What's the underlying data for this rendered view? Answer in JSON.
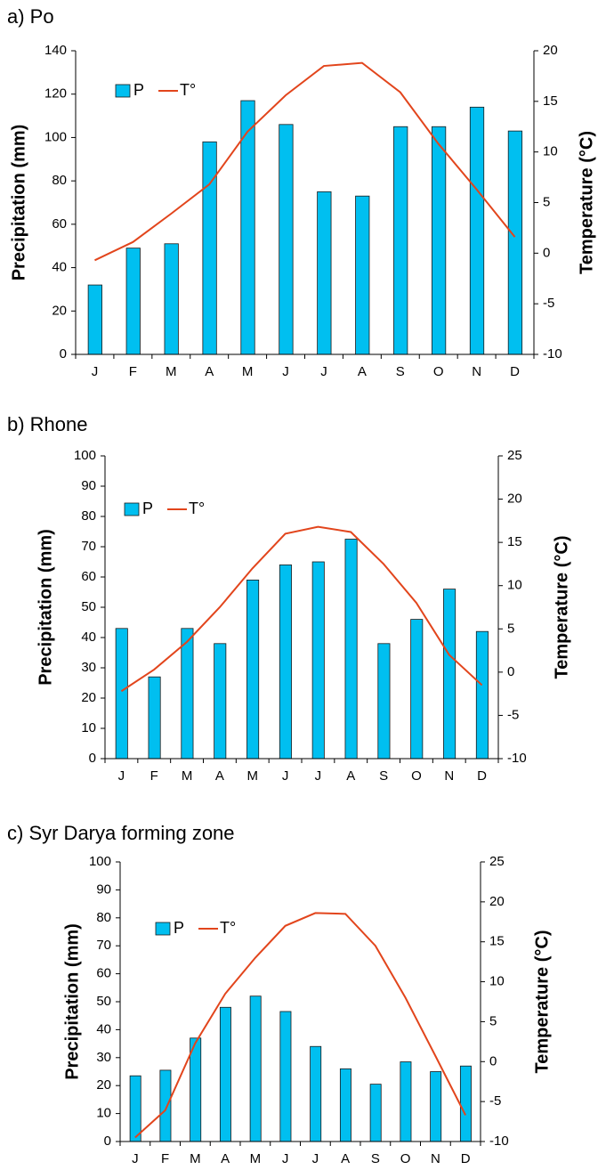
{
  "chart_data": [
    {
      "type": "bar",
      "title": "a) Po",
      "categories": [
        "J",
        "F",
        "M",
        "A",
        "M",
        "J",
        "J",
        "A",
        "S",
        "O",
        "N",
        "D"
      ],
      "series": [
        {
          "name": "P",
          "type": "bar",
          "color": "#00bff0",
          "values": [
            32,
            49,
            51,
            98,
            117,
            106,
            75,
            73,
            105,
            105,
            114,
            103
          ]
        },
        {
          "name": "T°",
          "type": "line",
          "axis": "y2",
          "color": "#e2451c",
          "values": [
            -0.7,
            1.1,
            3.9,
            6.8,
            12,
            15.6,
            18.5,
            18.8,
            15.9,
            10.8,
            6.3,
            1.6
          ]
        }
      ],
      "y_label": "Precipitation (mm)",
      "y2_label": "Temperature (°C)",
      "ylim": [
        0,
        140
      ],
      "yticks": [
        0,
        20,
        40,
        60,
        80,
        100,
        120,
        140
      ],
      "y2lim": [
        -10,
        20
      ],
      "y2ticks": [
        -10,
        -5,
        0,
        5,
        10,
        15,
        20
      ]
    },
    {
      "type": "bar",
      "title": "b) Rhone",
      "categories": [
        "J",
        "F",
        "M",
        "A",
        "M",
        "J",
        "J",
        "A",
        "S",
        "O",
        "N",
        "D"
      ],
      "series": [
        {
          "name": "P",
          "type": "bar",
          "color": "#00bff0",
          "values": [
            43,
            27,
            43,
            38,
            59,
            64,
            65,
            72.5,
            38,
            46,
            56,
            42
          ]
        },
        {
          "name": "T°",
          "type": "line",
          "axis": "y2",
          "color": "#e2451c",
          "values": [
            -2.2,
            0.3,
            3.5,
            7.5,
            12,
            16,
            16.8,
            16.2,
            12.5,
            8,
            2,
            -1.5
          ]
        }
      ],
      "y_label": "Precipitation (mm)",
      "y2_label": "Temperature (°C)",
      "ylim": [
        0,
        100
      ],
      "yticks": [
        0,
        10,
        20,
        30,
        40,
        50,
        60,
        70,
        80,
        90,
        100
      ],
      "y2lim": [
        -10,
        25
      ],
      "y2ticks": [
        -10,
        -5,
        0,
        5,
        10,
        15,
        20,
        25
      ]
    },
    {
      "type": "bar",
      "title": "c) Syr Darya forming zone",
      "categories": [
        "J",
        "F",
        "M",
        "A",
        "M",
        "J",
        "J",
        "A",
        "S",
        "O",
        "N",
        "D"
      ],
      "series": [
        {
          "name": "P",
          "type": "bar",
          "color": "#00bff0",
          "values": [
            23.5,
            25.5,
            37,
            48,
            52,
            46.5,
            34,
            26,
            20.5,
            28.5,
            25,
            27
          ]
        },
        {
          "name": "T°",
          "type": "line",
          "axis": "y2",
          "color": "#e2451c",
          "values": [
            -9.5,
            -6.1,
            2.3,
            8.5,
            13,
            17,
            18.6,
            18.5,
            14.5,
            8,
            0.7,
            -6.7
          ]
        }
      ],
      "y_label": "Precipitation (mm)",
      "y2_label": "Temperature (°C)",
      "ylim": [
        0,
        100
      ],
      "yticks": [
        0,
        10,
        20,
        30,
        40,
        50,
        60,
        70,
        80,
        90,
        100
      ],
      "y2lim": [
        -10,
        25
      ],
      "y2ticks": [
        -10,
        -5,
        0,
        5,
        10,
        15,
        20,
        25
      ]
    }
  ]
}
